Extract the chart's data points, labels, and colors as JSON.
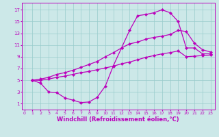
{
  "background_color": "#cce8e8",
  "grid_color": "#99cccc",
  "line_color": "#bb00bb",
  "marker": "D",
  "markersize": 2.2,
  "linewidth": 0.9,
  "xlabel": "Windchill (Refroidissement éolien,°C)",
  "xlabel_fontsize": 6.0,
  "xticks": [
    0,
    1,
    2,
    3,
    4,
    5,
    6,
    7,
    8,
    9,
    10,
    11,
    12,
    13,
    14,
    15,
    16,
    17,
    18,
    19,
    20,
    21,
    22,
    23
  ],
  "yticks": [
    1,
    3,
    5,
    7,
    9,
    11,
    13,
    15,
    17
  ],
  "xlim": [
    -0.3,
    23.5
  ],
  "ylim": [
    0,
    18.2
  ],
  "curve1_x": [
    1,
    2,
    3,
    4,
    5,
    6,
    7,
    8,
    9,
    10,
    11,
    12,
    13,
    14,
    15,
    16,
    17,
    18,
    19,
    20,
    21,
    22,
    23
  ],
  "curve1_y": [
    5,
    4.5,
    3.0,
    2.9,
    2.0,
    1.6,
    1.2,
    1.3,
    2.1,
    4.0,
    7.5,
    10.5,
    13.5,
    16.0,
    16.2,
    16.5,
    17.0,
    16.5,
    15.0,
    10.5,
    10.5,
    9.5,
    9.5
  ],
  "curve2_x": [
    1,
    2,
    3,
    4,
    5,
    6,
    7,
    8,
    9,
    10,
    11,
    12,
    13,
    14,
    15,
    16,
    17,
    18,
    19,
    20,
    21,
    22,
    23
  ],
  "curve2_y": [
    5,
    5.0,
    5.2,
    5.5,
    5.7,
    6.0,
    6.3,
    6.5,
    6.8,
    7.1,
    7.4,
    7.8,
    8.1,
    8.5,
    8.9,
    9.2,
    9.5,
    9.7,
    10.0,
    9.0,
    9.1,
    9.2,
    9.3
  ],
  "curve3_x": [
    1,
    2,
    3,
    4,
    5,
    6,
    7,
    8,
    9,
    10,
    11,
    12,
    13,
    14,
    15,
    16,
    17,
    18,
    19,
    20,
    21,
    22,
    23
  ],
  "curve3_y": [
    5,
    5.2,
    5.5,
    6.0,
    6.3,
    6.7,
    7.2,
    7.7,
    8.2,
    9.0,
    9.7,
    10.5,
    11.2,
    11.5,
    12.0,
    12.3,
    12.5,
    12.8,
    13.5,
    13.3,
    11.3,
    10.2,
    9.8
  ]
}
